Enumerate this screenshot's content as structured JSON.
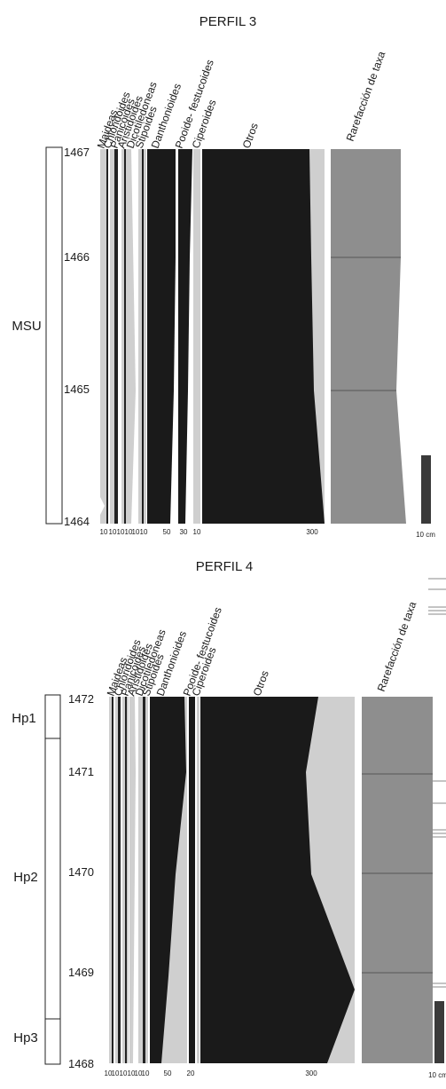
{
  "chart_data": [
    {
      "type": "area",
      "title": "PERFIL 3",
      "y_axis": {
        "ticks": [
          1467,
          1466,
          1465,
          1464
        ],
        "ylim": [
          1464,
          1467
        ]
      },
      "zones": [
        {
          "label": "MSU",
          "from": 1464,
          "to": 1467
        }
      ],
      "taxa_labels": [
        "Maideas",
        "Chloridoides",
        "Panicoides",
        "Aristidoides",
        "Dicotiledoneas",
        "Stipoides",
        "Danthonioides",
        "Pooide- festucoides",
        "Ciperoides",
        "Otros",
        "Rarefacción de taxa"
      ],
      "scale_labels": [
        "10",
        "10",
        "10",
        "10",
        "10",
        "10",
        "10",
        "50",
        "30",
        "30",
        "10",
        "300"
      ],
      "scale_bar_label": "10 cm",
      "series": [
        {
          "name": "Danthonioides",
          "depths": [
            1467,
            1466,
            1465,
            1464
          ],
          "values": [
            45,
            45,
            40,
            35
          ]
        },
        {
          "name": "Pooide- festucoides",
          "depths": [
            1467,
            1466,
            1465,
            1464
          ],
          "values": [
            25,
            22,
            20,
            18
          ]
        },
        {
          "name": "Otros",
          "depths": [
            1467,
            1466,
            1465,
            1464
          ],
          "values": [
            160,
            165,
            175,
            180
          ]
        },
        {
          "name": "Rarefacción de taxa",
          "depths": [
            1467,
            1466,
            1465,
            1464
          ],
          "values": [
            12,
            11.5,
            11,
            10.5
          ]
        }
      ]
    },
    {
      "type": "area",
      "title": "PERFIL 4",
      "y_axis": {
        "ticks": [
          1472,
          1471,
          1470,
          1469,
          1468
        ],
        "ylim": [
          1468,
          1472
        ]
      },
      "zones": [
        {
          "label": "Hp1",
          "from": 1471.7,
          "to": 1472
        },
        {
          "label": "Hp2",
          "from": 1468.8,
          "to": 1471.7
        },
        {
          "label": "Hp3",
          "from": 1468,
          "to": 1468.8
        }
      ],
      "taxa_labels": [
        "Maideas",
        "Chloridoides",
        "Panicoides",
        "Aristidoides",
        "Dicotiledoneas",
        "Stipoides",
        "Danthonioides",
        "Pooide- festucoides",
        "Ciperoides",
        "Otros",
        "Rarefacción de taxa"
      ],
      "scale_labels": [
        "10",
        "10",
        "10",
        "10",
        "10",
        "10",
        "10",
        "50",
        "20",
        "300"
      ],
      "scale_bar_label": "10 cm",
      "series": [
        {
          "name": "Danthonioides",
          "depths": [
            1472,
            1471,
            1470,
            1469,
            1468
          ],
          "values": [
            50,
            60,
            45,
            30,
            18
          ]
        },
        {
          "name": "Pooide- festucoides",
          "depths": [
            1472,
            1471,
            1470,
            1469,
            1468
          ],
          "values": [
            12,
            12,
            12,
            12,
            12
          ]
        },
        {
          "name": "Otros",
          "depths": [
            1472,
            1471,
            1470,
            1469,
            1468
          ],
          "values": [
            230,
            210,
            215,
            290,
            240
          ]
        },
        {
          "name": "Rarefacción de taxa",
          "depths": [
            1472,
            1471,
            1470,
            1469,
            1468
          ],
          "values": [
            11,
            11,
            11,
            11,
            11
          ]
        }
      ]
    }
  ]
}
